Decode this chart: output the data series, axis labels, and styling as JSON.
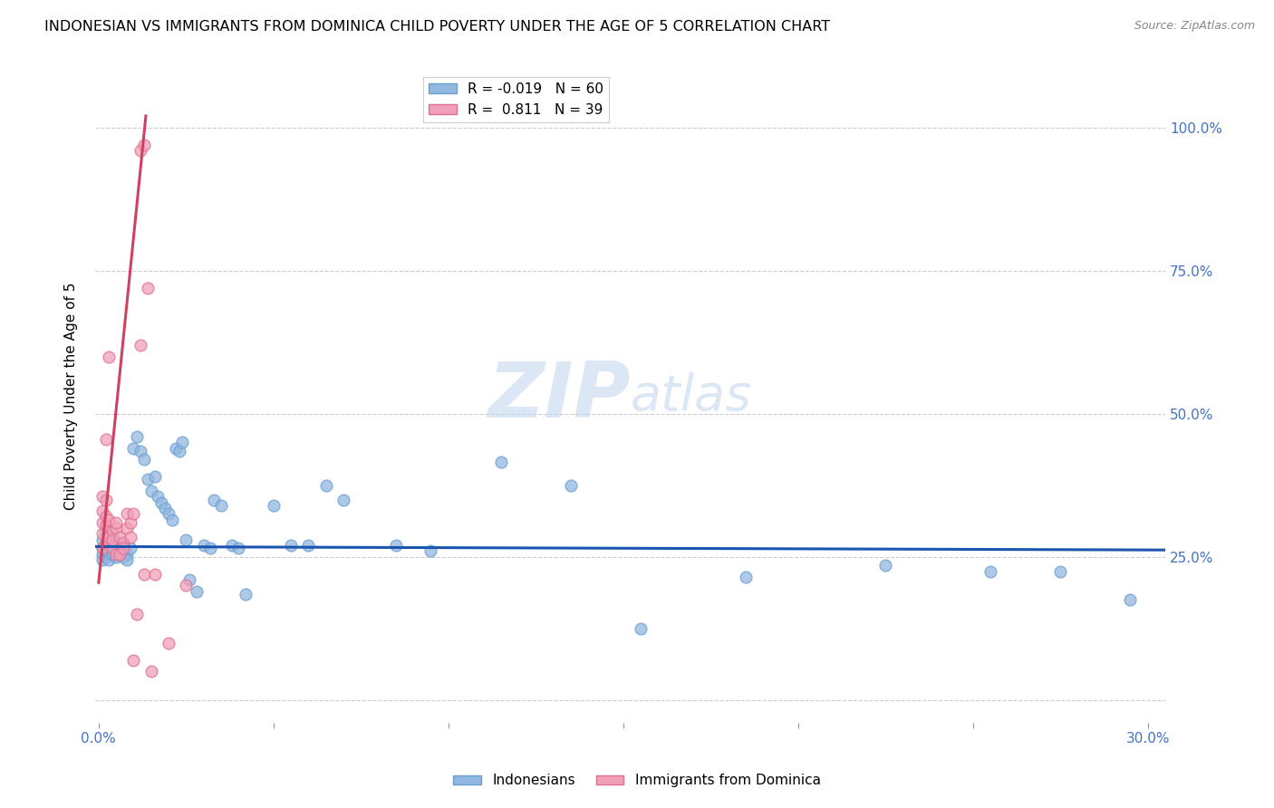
{
  "title": "INDONESIAN VS IMMIGRANTS FROM DOMINICA CHILD POVERTY UNDER THE AGE OF 5 CORRELATION CHART",
  "source": "Source: ZipAtlas.com",
  "ylabel": "Child Poverty Under the Age of 5",
  "ytick_labels": [
    "",
    "25.0%",
    "50.0%",
    "75.0%",
    "100.0%"
  ],
  "ytick_positions": [
    0.0,
    0.25,
    0.5,
    0.75,
    1.0
  ],
  "xlim": [
    -0.001,
    0.305
  ],
  "ylim": [
    -0.04,
    1.1
  ],
  "legend_blue": "R = -0.019   N = 60",
  "legend_pink": "R =  0.811   N = 39",
  "scatter_indonesians": [
    [
      0.001,
      0.265
    ],
    [
      0.001,
      0.255
    ],
    [
      0.001,
      0.245
    ],
    [
      0.001,
      0.28
    ],
    [
      0.002,
      0.26
    ],
    [
      0.002,
      0.25
    ],
    [
      0.002,
      0.27
    ],
    [
      0.002,
      0.295
    ],
    [
      0.003,
      0.255
    ],
    [
      0.003,
      0.245
    ],
    [
      0.003,
      0.275
    ],
    [
      0.004,
      0.265
    ],
    [
      0.004,
      0.255
    ],
    [
      0.004,
      0.285
    ],
    [
      0.005,
      0.26
    ],
    [
      0.005,
      0.25
    ],
    [
      0.005,
      0.275
    ],
    [
      0.006,
      0.255
    ],
    [
      0.006,
      0.265
    ],
    [
      0.007,
      0.26
    ],
    [
      0.007,
      0.25
    ],
    [
      0.007,
      0.27
    ],
    [
      0.008,
      0.255
    ],
    [
      0.008,
      0.245
    ],
    [
      0.009,
      0.265
    ],
    [
      0.01,
      0.44
    ],
    [
      0.011,
      0.46
    ],
    [
      0.012,
      0.435
    ],
    [
      0.013,
      0.42
    ],
    [
      0.014,
      0.385
    ],
    [
      0.015,
      0.365
    ],
    [
      0.016,
      0.39
    ],
    [
      0.017,
      0.355
    ],
    [
      0.018,
      0.345
    ],
    [
      0.019,
      0.335
    ],
    [
      0.02,
      0.325
    ],
    [
      0.021,
      0.315
    ],
    [
      0.022,
      0.44
    ],
    [
      0.023,
      0.435
    ],
    [
      0.024,
      0.45
    ],
    [
      0.025,
      0.28
    ],
    [
      0.026,
      0.21
    ],
    [
      0.028,
      0.19
    ],
    [
      0.03,
      0.27
    ],
    [
      0.032,
      0.265
    ],
    [
      0.033,
      0.35
    ],
    [
      0.035,
      0.34
    ],
    [
      0.038,
      0.27
    ],
    [
      0.04,
      0.265
    ],
    [
      0.042,
      0.185
    ],
    [
      0.05,
      0.34
    ],
    [
      0.055,
      0.27
    ],
    [
      0.06,
      0.27
    ],
    [
      0.065,
      0.375
    ],
    [
      0.07,
      0.35
    ],
    [
      0.085,
      0.27
    ],
    [
      0.095,
      0.26
    ],
    [
      0.115,
      0.415
    ],
    [
      0.135,
      0.375
    ],
    [
      0.155,
      0.125
    ]
  ],
  "scatter_indonesians_extra": [
    [
      0.185,
      0.215
    ],
    [
      0.225,
      0.235
    ],
    [
      0.255,
      0.225
    ],
    [
      0.275,
      0.225
    ],
    [
      0.295,
      0.175
    ]
  ],
  "scatter_dominica": [
    [
      0.001,
      0.265
    ],
    [
      0.001,
      0.29
    ],
    [
      0.001,
      0.31
    ],
    [
      0.001,
      0.33
    ],
    [
      0.001,
      0.355
    ],
    [
      0.002,
      0.275
    ],
    [
      0.002,
      0.305
    ],
    [
      0.002,
      0.32
    ],
    [
      0.002,
      0.35
    ],
    [
      0.002,
      0.455
    ],
    [
      0.003,
      0.285
    ],
    [
      0.003,
      0.315
    ],
    [
      0.003,
      0.6
    ],
    [
      0.004,
      0.295
    ],
    [
      0.004,
      0.265
    ],
    [
      0.004,
      0.28
    ],
    [
      0.005,
      0.3
    ],
    [
      0.005,
      0.255
    ],
    [
      0.005,
      0.31
    ],
    [
      0.006,
      0.285
    ],
    [
      0.006,
      0.255
    ],
    [
      0.007,
      0.275
    ],
    [
      0.007,
      0.265
    ],
    [
      0.008,
      0.325
    ],
    [
      0.008,
      0.3
    ],
    [
      0.009,
      0.285
    ],
    [
      0.009,
      0.31
    ],
    [
      0.01,
      0.325
    ],
    [
      0.01,
      0.07
    ],
    [
      0.011,
      0.15
    ],
    [
      0.012,
      0.62
    ],
    [
      0.012,
      0.96
    ],
    [
      0.013,
      0.97
    ],
    [
      0.013,
      0.22
    ],
    [
      0.014,
      0.72
    ],
    [
      0.015,
      0.05
    ],
    [
      0.016,
      0.22
    ],
    [
      0.02,
      0.1
    ],
    [
      0.025,
      0.2
    ]
  ],
  "blue_line": {
    "x": [
      -0.001,
      0.305
    ],
    "y": [
      0.268,
      0.262
    ]
  },
  "pink_line": {
    "x": [
      0.0,
      0.0135
    ],
    "y": [
      0.205,
      1.02
    ]
  },
  "watermark_zip": "ZIP",
  "watermark_atlas": "atlas",
  "dot_size": 85,
  "blue_color": "#92b8e0",
  "pink_color": "#f0a0b8",
  "blue_outline": "#6a9fd0",
  "pink_outline": "#e07090",
  "blue_line_color": "#1a56b0",
  "pink_line_color": "#d04060",
  "grid_color": "#cccccc",
  "bg_color": "#ffffff",
  "right_axis_color": "#4472c4",
  "xtick_color": "#4472c4"
}
